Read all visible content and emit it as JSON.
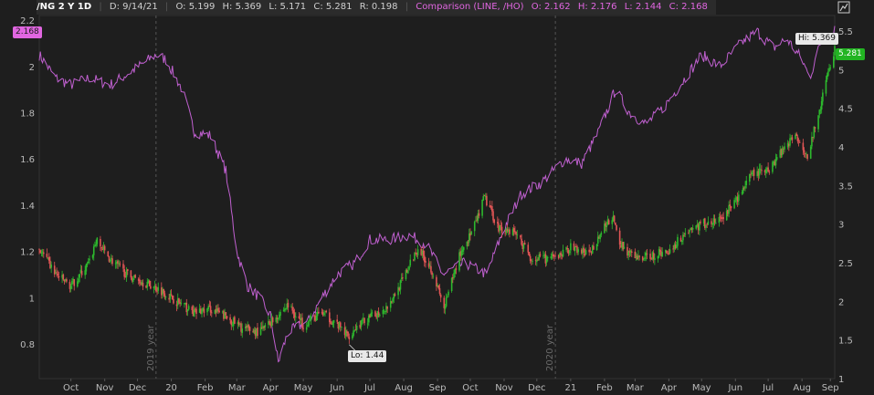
{
  "header": {
    "symbol": "/NG 2 Y 1D",
    "date": "D: 9/14/21",
    "open": "O: 5.199",
    "high": "H: 5.369",
    "low": "L: 5.171",
    "close": "C: 5.281",
    "range": "R: 0.198",
    "comparison_label": "Comparison (LINE, /HO)",
    "cmp_open": "O: 2.162",
    "cmp_high": "H: 2.176",
    "cmp_low": "L: 2.144",
    "cmp_close": "C: 2.168",
    "tool_icon": "chart-style-icon"
  },
  "colors": {
    "background": "#1e1e1e",
    "up": "#2db82d",
    "down": "#e05555",
    "comparison": "#c060d0",
    "grid": "#3a3a3a",
    "axis_text": "#bbbbbb"
  },
  "chart_data": {
    "type": "candlestick",
    "title": "/NG 2 Y 1D",
    "x_range": [
      "2019-09-16",
      "2021-09-14"
    ],
    "right_axis": {
      "ticks": [
        "5.5",
        "5",
        "4.5",
        "4",
        "3.5",
        "3",
        "2.5",
        "2",
        "1.5",
        "1"
      ],
      "ylim": [
        1.0,
        5.7
      ]
    },
    "left_axis": {
      "ticks": [
        "2.2",
        "2",
        "1.8",
        "1.6",
        "1.4",
        "1.2",
        "1",
        "0.8"
      ],
      "ylim": [
        0.65,
        2.22
      ]
    },
    "x_labels": [
      {
        "date": "2019-10-15",
        "label": "Oct"
      },
      {
        "date": "2019-11-15",
        "label": "Nov"
      },
      {
        "date": "2019-12-15",
        "label": "Dec"
      },
      {
        "date": "2020-01-15",
        "label": "20"
      },
      {
        "date": "2020-02-15",
        "label": "Feb"
      },
      {
        "date": "2020-03-15",
        "label": "Mar"
      },
      {
        "date": "2020-04-15",
        "label": "Apr"
      },
      {
        "date": "2020-05-15",
        "label": "May"
      },
      {
        "date": "2020-06-15",
        "label": "Jun"
      },
      {
        "date": "2020-07-15",
        "label": "Jul"
      },
      {
        "date": "2020-08-15",
        "label": "Aug"
      },
      {
        "date": "2020-09-15",
        "label": "Sep"
      },
      {
        "date": "2020-10-15",
        "label": "Oct"
      },
      {
        "date": "2020-11-15",
        "label": "Nov"
      },
      {
        "date": "2020-12-15",
        "label": "Dec"
      },
      {
        "date": "2021-01-15",
        "label": "21"
      },
      {
        "date": "2021-02-15",
        "label": "Feb"
      },
      {
        "date": "2021-03-15",
        "label": "Mar"
      },
      {
        "date": "2021-04-15",
        "label": "Apr"
      },
      {
        "date": "2021-05-15",
        "label": "May"
      },
      {
        "date": "2021-06-15",
        "label": "Jun"
      },
      {
        "date": "2021-07-15",
        "label": "Jul"
      },
      {
        "date": "2021-08-15",
        "label": "Aug"
      },
      {
        "date": "2021-09-10",
        "label": "Sep"
      }
    ],
    "year_markers": [
      {
        "date": "2020-01-01",
        "label": "2019 year"
      },
      {
        "date": "2021-01-01",
        "label": "2020 year"
      }
    ],
    "ng_close": [
      [
        "2019-09-16",
        2.68
      ],
      [
        "2019-10-01",
        2.35
      ],
      [
        "2019-10-15",
        2.2
      ],
      [
        "2019-11-01",
        2.5
      ],
      [
        "2019-11-07",
        2.78
      ],
      [
        "2019-11-20",
        2.55
      ],
      [
        "2019-12-05",
        2.35
      ],
      [
        "2019-12-20",
        2.25
      ],
      [
        "2020-01-05",
        2.15
      ],
      [
        "2020-01-20",
        2.0
      ],
      [
        "2020-02-05",
        1.85
      ],
      [
        "2020-02-20",
        1.9
      ],
      [
        "2020-03-05",
        1.8
      ],
      [
        "2020-03-20",
        1.65
      ],
      [
        "2020-04-05",
        1.6
      ],
      [
        "2020-04-20",
        1.8
      ],
      [
        "2020-05-01",
        1.95
      ],
      [
        "2020-05-15",
        1.7
      ],
      [
        "2020-06-01",
        1.85
      ],
      [
        "2020-06-15",
        1.7
      ],
      [
        "2020-06-25",
        1.55
      ],
      [
        "2020-07-05",
        1.7
      ],
      [
        "2020-07-15",
        1.78
      ],
      [
        "2020-08-01",
        1.95
      ],
      [
        "2020-08-15",
        2.3
      ],
      [
        "2020-08-28",
        2.7
      ],
      [
        "2020-09-10",
        2.4
      ],
      [
        "2020-09-21",
        1.9
      ],
      [
        "2020-10-05",
        2.6
      ],
      [
        "2020-10-20",
        3.0
      ],
      [
        "2020-10-28",
        3.35
      ],
      [
        "2020-11-10",
        2.95
      ],
      [
        "2020-11-25",
        2.9
      ],
      [
        "2020-12-10",
        2.55
      ],
      [
        "2020-12-31",
        2.55
      ],
      [
        "2021-01-15",
        2.7
      ],
      [
        "2021-02-01",
        2.6
      ],
      [
        "2021-02-10",
        2.85
      ],
      [
        "2021-02-22",
        3.1
      ],
      [
        "2021-03-01",
        2.75
      ],
      [
        "2021-03-15",
        2.55
      ],
      [
        "2021-04-01",
        2.6
      ],
      [
        "2021-04-15",
        2.65
      ],
      [
        "2021-05-01",
        2.9
      ],
      [
        "2021-05-15",
        3.0
      ],
      [
        "2021-06-01",
        3.05
      ],
      [
        "2021-06-15",
        3.3
      ],
      [
        "2021-07-01",
        3.65
      ],
      [
        "2021-07-15",
        3.7
      ],
      [
        "2021-08-01",
        4.05
      ],
      [
        "2021-08-10",
        4.15
      ],
      [
        "2021-08-20",
        3.9
      ],
      [
        "2021-08-30",
        4.4
      ],
      [
        "2021-09-07",
        4.9
      ],
      [
        "2021-09-14",
        5.281
      ]
    ],
    "ho_close": [
      [
        "2019-09-16",
        2.05
      ],
      [
        "2019-10-01",
        1.95
      ],
      [
        "2019-10-15",
        1.92
      ],
      [
        "2019-11-01",
        1.95
      ],
      [
        "2019-11-20",
        1.92
      ],
      [
        "2019-12-10",
        1.98
      ],
      [
        "2020-01-01",
        2.05
      ],
      [
        "2020-01-10",
        2.03
      ],
      [
        "2020-01-25",
        1.9
      ],
      [
        "2020-02-05",
        1.72
      ],
      [
        "2020-02-20",
        1.7
      ],
      [
        "2020-03-05",
        1.55
      ],
      [
        "2020-03-15",
        1.2
      ],
      [
        "2020-03-25",
        1.05
      ],
      [
        "2020-04-05",
        1.0
      ],
      [
        "2020-04-15",
        0.92
      ],
      [
        "2020-04-22",
        0.72
      ],
      [
        "2020-05-01",
        0.85
      ],
      [
        "2020-05-20",
        0.9
      ],
      [
        "2020-06-01",
        1.0
      ],
      [
        "2020-06-15",
        1.1
      ],
      [
        "2020-07-01",
        1.15
      ],
      [
        "2020-07-15",
        1.25
      ],
      [
        "2020-08-01",
        1.25
      ],
      [
        "2020-08-20",
        1.27
      ],
      [
        "2020-09-05",
        1.23
      ],
      [
        "2020-09-20",
        1.1
      ],
      [
        "2020-10-10",
        1.15
      ],
      [
        "2020-10-30",
        1.1
      ],
      [
        "2020-11-15",
        1.3
      ],
      [
        "2020-12-01",
        1.45
      ],
      [
        "2020-12-20",
        1.5
      ],
      [
        "2021-01-10",
        1.6
      ],
      [
        "2021-01-25",
        1.58
      ],
      [
        "2021-02-10",
        1.72
      ],
      [
        "2021-02-25",
        1.9
      ],
      [
        "2021-03-10",
        1.8
      ],
      [
        "2021-03-25",
        1.75
      ],
      [
        "2021-04-10",
        1.82
      ],
      [
        "2021-04-30",
        1.95
      ],
      [
        "2021-05-15",
        2.05
      ],
      [
        "2021-06-01",
        2.0
      ],
      [
        "2021-06-20",
        2.1
      ],
      [
        "2021-07-05",
        2.15
      ],
      [
        "2021-07-20",
        2.08
      ],
      [
        "2021-08-01",
        2.12
      ],
      [
        "2021-08-15",
        2.03
      ],
      [
        "2021-08-22",
        1.95
      ],
      [
        "2021-09-01",
        2.1
      ],
      [
        "2021-09-14",
        2.168
      ]
    ],
    "labels": {
      "hi": "Hi: 5.369",
      "lo": "Lo: 1.44",
      "left_current": "2.168",
      "right_current": "5.281"
    },
    "hi_point": [
      "2021-09-14",
      5.369
    ],
    "lo_point": [
      "2020-06-26",
      1.44
    ]
  }
}
